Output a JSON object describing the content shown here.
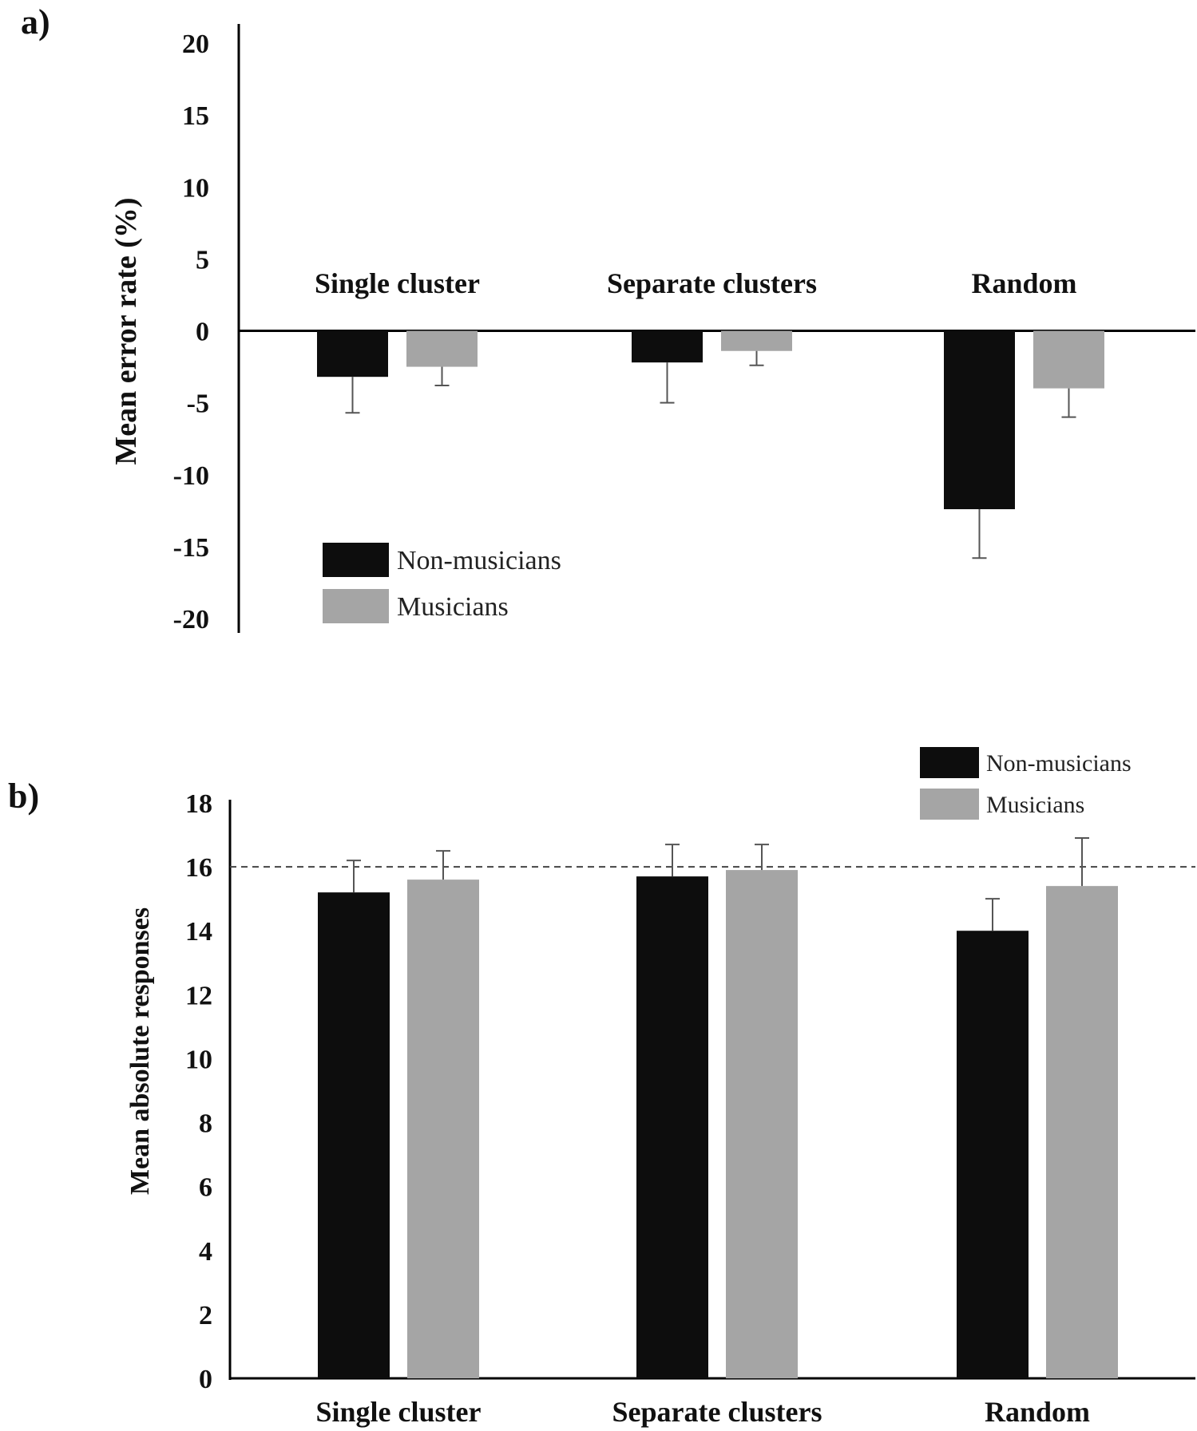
{
  "chart_data": [
    {
      "type": "bar",
      "panel_label": "a)",
      "categories": [
        "Single cluster",
        "Separate clusters",
        "Random"
      ],
      "ylabel": "Mean error rate (%)",
      "ylim": [
        -20,
        20
      ],
      "yticks": [
        20,
        15,
        10,
        5,
        0,
        -5,
        -10,
        -15,
        -20
      ],
      "series": [
        {
          "name": "Non-musicians",
          "color": "#0d0d0d",
          "values": [
            -3.2,
            -2.2,
            -12.4
          ],
          "errors": [
            2.5,
            2.8,
            3.4
          ]
        },
        {
          "name": "Musicians",
          "color": "#a5a5a5",
          "values": [
            -2.5,
            -1.4,
            -4.0
          ],
          "errors": [
            1.3,
            1.0,
            2.0
          ]
        }
      ],
      "legend_position": "bottom-left"
    },
    {
      "type": "bar",
      "panel_label": "b)",
      "categories": [
        "Single cluster",
        "Separate clusters",
        "Random"
      ],
      "ylabel": "Mean absolute responses",
      "ylim": [
        0,
        18
      ],
      "yticks": [
        18,
        16,
        14,
        12,
        10,
        8,
        6,
        4,
        2,
        0
      ],
      "reference_line": 16,
      "series": [
        {
          "name": "Non-musicians",
          "color": "#0d0d0d",
          "values": [
            15.2,
            15.7,
            14.0
          ],
          "errors": [
            1.0,
            1.0,
            1.0
          ]
        },
        {
          "name": "Musicians",
          "color": "#a5a5a5",
          "values": [
            15.6,
            15.9,
            15.4
          ],
          "errors": [
            0.9,
            0.8,
            1.5
          ]
        }
      ],
      "legend_position": "top-right"
    }
  ]
}
